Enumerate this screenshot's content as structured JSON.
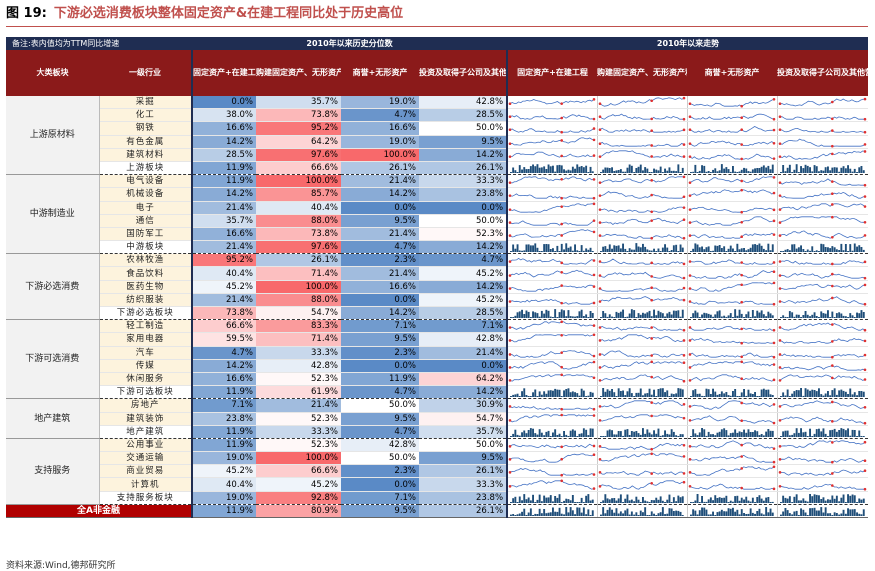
{
  "title": {
    "fig": "图 19:",
    "text": "下游必选消费板块整体固定资产&在建工程同比处于历史高位"
  },
  "header": {
    "note": "备注:表内值均为TTM同比增速",
    "group_pct": "2010年以来历史分位数",
    "group_trend": "2010年以来走势",
    "col_sector": "大类板块",
    "col_industry": "一级行业",
    "metrics": [
      "固定资产+在建工程",
      "购建固定资产、无形资产和其他长期资产支付的现金",
      "商誉+无形资产",
      "投资及取得子公司及其他营业单位支付的现金"
    ]
  },
  "colors": {
    "high": "#f8696b",
    "low": "#5a8ac6",
    "mid": "#ffffff"
  },
  "groups": [
    {
      "sector": "上游原材料",
      "rows": [
        {
          "name": "采掘",
          "v": [
            "0.0%",
            "35.7%",
            "19.0%",
            "42.8%"
          ],
          "p": [
            0.0,
            35.7,
            19.0,
            42.8
          ]
        },
        {
          "name": "化工",
          "v": [
            "38.0%",
            "73.8%",
            "4.7%",
            "28.5%"
          ],
          "p": [
            38.0,
            73.8,
            4.7,
            28.5
          ]
        },
        {
          "name": "钢铁",
          "v": [
            "16.6%",
            "95.2%",
            "16.6%",
            "50.0%"
          ],
          "p": [
            16.6,
            95.2,
            16.6,
            50.0
          ]
        },
        {
          "name": "有色金属",
          "v": [
            "14.2%",
            "64.2%",
            "19.0%",
            "9.5%"
          ],
          "p": [
            14.2,
            64.2,
            19.0,
            9.5
          ]
        },
        {
          "name": "建筑材料",
          "v": [
            "28.5%",
            "97.6%",
            "100.0%",
            "14.2%"
          ],
          "p": [
            28.5,
            97.6,
            100.0,
            14.2
          ]
        },
        {
          "name": "上游板块",
          "agg": true,
          "v": [
            "11.9%",
            "66.6%",
            "26.1%",
            "26.1%"
          ],
          "p": [
            11.9,
            66.6,
            26.1,
            26.1
          ]
        }
      ]
    },
    {
      "sector": "中游制造业",
      "rows": [
        {
          "name": "电气设备",
          "v": [
            "11.9%",
            "100.0%",
            "21.4%",
            "33.3%"
          ],
          "p": [
            11.9,
            100.0,
            21.4,
            33.3
          ]
        },
        {
          "name": "机械设备",
          "v": [
            "14.2%",
            "85.7%",
            "14.2%",
            "23.8%"
          ],
          "p": [
            14.2,
            85.7,
            14.2,
            23.8
          ]
        },
        {
          "name": "电子",
          "v": [
            "21.4%",
            "40.4%",
            "0.0%",
            "0.0%"
          ],
          "p": [
            21.4,
            40.4,
            0.0,
            0.0
          ]
        },
        {
          "name": "通信",
          "v": [
            "35.7%",
            "88.0%",
            "9.5%",
            "50.0%"
          ],
          "p": [
            35.7,
            88.0,
            9.5,
            50.0
          ]
        },
        {
          "name": "国防军工",
          "v": [
            "16.6%",
            "73.8%",
            "21.4%",
            "52.3%"
          ],
          "p": [
            16.6,
            73.8,
            21.4,
            52.3
          ]
        },
        {
          "name": "中游板块",
          "agg": true,
          "v": [
            "21.4%",
            "97.6%",
            "4.7%",
            "14.2%"
          ],
          "p": [
            21.4,
            97.6,
            4.7,
            14.2
          ]
        }
      ]
    },
    {
      "sector": "下游必选消费",
      "rows": [
        {
          "name": "农林牧渔",
          "v": [
            "95.2%",
            "26.1%",
            "2.3%",
            "4.7%"
          ],
          "p": [
            95.2,
            26.1,
            2.3,
            4.7
          ]
        },
        {
          "name": "食品饮料",
          "v": [
            "40.4%",
            "71.4%",
            "21.4%",
            "45.2%"
          ],
          "p": [
            40.4,
            71.4,
            21.4,
            45.2
          ]
        },
        {
          "name": "医药生物",
          "v": [
            "45.2%",
            "100.0%",
            "16.6%",
            "14.2%"
          ],
          "p": [
            45.2,
            100.0,
            16.6,
            14.2
          ]
        },
        {
          "name": "纺织服装",
          "v": [
            "21.4%",
            "88.0%",
            "0.0%",
            "45.2%"
          ],
          "p": [
            21.4,
            88.0,
            0.0,
            45.2
          ]
        },
        {
          "name": "下游必选板块",
          "agg": true,
          "v": [
            "73.8%",
            "54.7%",
            "14.2%",
            "28.5%"
          ],
          "p": [
            73.8,
            54.7,
            14.2,
            28.5
          ]
        }
      ]
    },
    {
      "sector": "下游可选消费",
      "rows": [
        {
          "name": "轻工制造",
          "v": [
            "66.6%",
            "83.3%",
            "7.1%",
            "7.1%"
          ],
          "p": [
            66.6,
            83.3,
            7.1,
            7.1
          ]
        },
        {
          "name": "家用电器",
          "v": [
            "59.5%",
            "71.4%",
            "9.5%",
            "42.8%"
          ],
          "p": [
            59.5,
            71.4,
            9.5,
            42.8
          ]
        },
        {
          "name": "汽车",
          "v": [
            "4.7%",
            "33.3%",
            "2.3%",
            "21.4%"
          ],
          "p": [
            4.7,
            33.3,
            2.3,
            21.4
          ]
        },
        {
          "name": "传媒",
          "v": [
            "14.2%",
            "42.8%",
            "0.0%",
            "0.0%"
          ],
          "p": [
            14.2,
            42.8,
            0.0,
            0.0
          ]
        },
        {
          "name": "休闲服务",
          "v": [
            "16.6%",
            "52.3%",
            "11.9%",
            "64.2%"
          ],
          "p": [
            16.6,
            52.3,
            11.9,
            64.2
          ]
        },
        {
          "name": "下游可选板块",
          "agg": true,
          "v": [
            "11.9%",
            "61.9%",
            "4.7%",
            "14.2%"
          ],
          "p": [
            11.9,
            61.9,
            4.7,
            14.2
          ]
        }
      ]
    },
    {
      "sector": "地产建筑",
      "rows": [
        {
          "name": "房地产",
          "v": [
            "7.1%",
            "21.4%",
            "50.0%",
            "30.9%"
          ],
          "p": [
            7.1,
            21.4,
            50.0,
            30.9
          ]
        },
        {
          "name": "建筑装饰",
          "v": [
            "23.8%",
            "52.3%",
            "9.5%",
            "54.7%"
          ],
          "p": [
            23.8,
            52.3,
            9.5,
            54.7
          ]
        },
        {
          "name": "地产建筑",
          "agg": true,
          "v": [
            "11.9%",
            "33.3%",
            "4.7%",
            "35.7%"
          ],
          "p": [
            11.9,
            33.3,
            4.7,
            35.7
          ]
        }
      ]
    },
    {
      "sector": "支持服务",
      "rows": [
        {
          "name": "公用事业",
          "v": [
            "11.9%",
            "52.3%",
            "42.8%",
            "50.0%"
          ],
          "p": [
            11.9,
            52.3,
            42.8,
            50.0
          ]
        },
        {
          "name": "交通运输",
          "v": [
            "19.0%",
            "100.0%",
            "50.0%",
            "9.5%"
          ],
          "p": [
            19.0,
            100.0,
            50.0,
            9.5
          ]
        },
        {
          "name": "商业贸易",
          "v": [
            "45.2%",
            "66.6%",
            "2.3%",
            "26.1%"
          ],
          "p": [
            45.2,
            66.6,
            2.3,
            26.1
          ]
        },
        {
          "name": "计算机",
          "v": [
            "40.4%",
            "45.2%",
            "0.0%",
            "33.3%"
          ],
          "p": [
            40.4,
            45.2,
            0.0,
            33.3
          ]
        },
        {
          "name": "支持服务板块",
          "agg": true,
          "v": [
            "19.0%",
            "92.8%",
            "7.1%",
            "23.8%"
          ],
          "p": [
            19.0,
            92.8,
            7.1,
            23.8
          ]
        }
      ]
    }
  ],
  "total": {
    "name": "全A非金融",
    "v": [
      "11.9%",
      "80.9%",
      "9.5%",
      "26.1%"
    ],
    "p": [
      11.9,
      80.9,
      9.5,
      26.1
    ]
  },
  "source": "资料来源:Wind,德邦研究所"
}
